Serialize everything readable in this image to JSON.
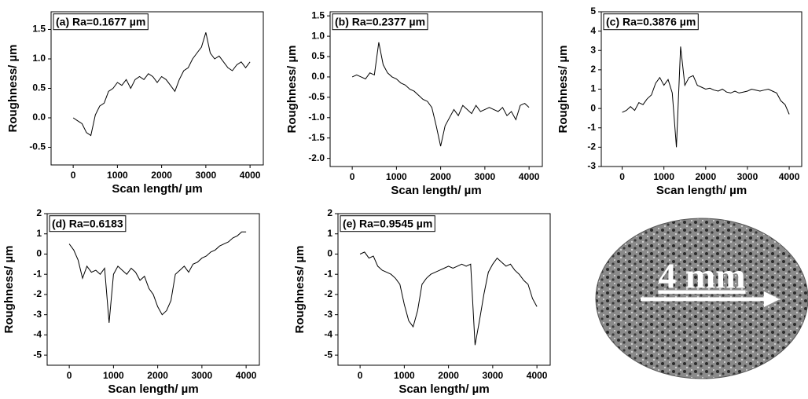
{
  "chart_data": [
    {
      "type": "line",
      "title": "(a) Ra=0.1677 µm",
      "x_label": "Scan length/ µm",
      "y_label": "Roughness/ µm",
      "color": "#000000",
      "x": [
        0,
        100,
        200,
        300,
        400,
        500,
        600,
        700,
        800,
        900,
        1000,
        1100,
        1200,
        1300,
        1400,
        1500,
        1600,
        1700,
        1800,
        1900,
        2000,
        2100,
        2200,
        2300,
        2400,
        2500,
        2600,
        2700,
        2800,
        2900,
        3000,
        3100,
        3200,
        3300,
        3400,
        3500,
        3600,
        3700,
        3800,
        3900,
        4000
      ],
      "values": [
        0.0,
        -0.05,
        -0.1,
        -0.25,
        -0.3,
        0.05,
        0.2,
        0.25,
        0.45,
        0.5,
        0.6,
        0.55,
        0.65,
        0.5,
        0.65,
        0.7,
        0.65,
        0.75,
        0.7,
        0.6,
        0.7,
        0.65,
        0.55,
        0.45,
        0.65,
        0.8,
        0.85,
        1.0,
        1.1,
        1.2,
        1.45,
        1.1,
        1.0,
        1.05,
        0.95,
        0.85,
        0.8,
        0.9,
        0.95,
        0.85,
        0.95
      ],
      "xlim": [
        -500,
        4300
      ],
      "xticks": [
        0,
        1000,
        2000,
        3000,
        4000
      ],
      "ylim": [
        -0.8,
        1.8
      ],
      "yticks": [
        -0.5,
        {
          "value": 0,
          "label": "0.0"
        },
        0.5,
        {
          "value": 1,
          "label": "1.0"
        },
        1.5
      ]
    },
    {
      "type": "line",
      "title": "(b) Ra=0.2377 µm",
      "x_label": "Scan length/ µm",
      "y_label": "Roughness/ µm",
      "color": "#000000",
      "x": [
        0,
        100,
        200,
        300,
        400,
        500,
        600,
        700,
        800,
        900,
        1000,
        1100,
        1200,
        1300,
        1400,
        1500,
        1600,
        1700,
        1800,
        1900,
        2000,
        2100,
        2200,
        2300,
        2400,
        2500,
        2600,
        2700,
        2800,
        2900,
        3000,
        3100,
        3200,
        3300,
        3400,
        3500,
        3600,
        3700,
        3800,
        3900,
        4000
      ],
      "values": [
        0.0,
        0.05,
        0.0,
        -0.05,
        0.1,
        0.05,
        0.85,
        0.3,
        0.1,
        0.0,
        -0.05,
        -0.15,
        -0.2,
        -0.3,
        -0.35,
        -0.45,
        -0.55,
        -0.6,
        -0.75,
        -1.2,
        -1.7,
        -1.2,
        -1.0,
        -0.8,
        -0.95,
        -0.7,
        -0.8,
        -0.9,
        -0.7,
        -0.85,
        -0.8,
        -0.75,
        -0.8,
        -0.85,
        -0.75,
        -0.95,
        -0.85,
        -1.05,
        -0.7,
        -0.65,
        -0.75
      ],
      "xlim": [
        -500,
        4300
      ],
      "xticks": [
        0,
        1000,
        2000,
        3000,
        4000
      ],
      "ylim": [
        -2.2,
        1.6
      ],
      "yticks": [
        1.5,
        {
          "value": 1,
          "label": "1.0"
        },
        0.5,
        {
          "value": 0,
          "label": "0.0"
        },
        -0.5,
        {
          "value": -1,
          "label": "-1.0"
        },
        -1.5,
        {
          "value": -2,
          "label": "-2.0"
        }
      ]
    },
    {
      "type": "line",
      "title": "(c) Ra=0.3876 µm",
      "x_label": "Scan length/ µm",
      "y_label": "Roughness/ µm",
      "color": "#000000",
      "x": [
        0,
        100,
        200,
        300,
        400,
        500,
        600,
        700,
        800,
        900,
        1000,
        1100,
        1200,
        1300,
        1400,
        1500,
        1600,
        1700,
        1800,
        1900,
        2000,
        2100,
        2200,
        2300,
        2400,
        2500,
        2600,
        2700,
        2800,
        2900,
        3000,
        3100,
        3200,
        3300,
        3400,
        3500,
        3600,
        3700,
        3800,
        3900,
        4000
      ],
      "values": [
        -0.2,
        -0.1,
        0.1,
        -0.1,
        0.3,
        0.2,
        0.5,
        0.7,
        1.3,
        1.6,
        1.2,
        1.5,
        0.8,
        -2.0,
        3.2,
        1.2,
        1.6,
        1.7,
        1.2,
        1.1,
        1.0,
        1.05,
        0.95,
        0.9,
        1.0,
        0.85,
        0.8,
        0.9,
        0.8,
        0.85,
        0.9,
        1.0,
        0.95,
        0.9,
        0.95,
        1.0,
        0.9,
        0.8,
        0.4,
        0.2,
        -0.3
      ],
      "xlim": [
        -500,
        4300
      ],
      "xticks": [
        0,
        1000,
        2000,
        3000,
        4000
      ],
      "ylim": [
        -3,
        5
      ],
      "yticks": [
        -3,
        -2,
        -1,
        0,
        1,
        2,
        3,
        4,
        5
      ]
    },
    {
      "type": "line",
      "title": "(d) Ra=0.6183",
      "x_label": "Scan length/ µm",
      "y_label": "Roughness/ µm",
      "color": "#000000",
      "x": [
        0,
        100,
        200,
        300,
        400,
        500,
        600,
        700,
        800,
        900,
        1000,
        1100,
        1200,
        1300,
        1400,
        1500,
        1600,
        1700,
        1800,
        1900,
        2000,
        2100,
        2200,
        2300,
        2400,
        2500,
        2600,
        2700,
        2800,
        2900,
        3000,
        3100,
        3200,
        3300,
        3400,
        3500,
        3600,
        3700,
        3800,
        3900,
        4000
      ],
      "values": [
        0.5,
        0.2,
        -0.3,
        -1.2,
        -0.6,
        -0.9,
        -0.8,
        -1.0,
        -0.7,
        -3.4,
        -1.0,
        -0.6,
        -0.8,
        -1.0,
        -0.7,
        -0.9,
        -1.3,
        -1.1,
        -1.7,
        -2.0,
        -2.6,
        -3.0,
        -2.8,
        -2.3,
        -1.0,
        -0.8,
        -0.6,
        -0.9,
        -0.5,
        -0.4,
        -0.2,
        -0.1,
        0.1,
        0.2,
        0.4,
        0.5,
        0.6,
        0.8,
        0.9,
        1.1,
        1.1
      ],
      "xlim": [
        -500,
        4300
      ],
      "xticks": [
        0,
        1000,
        2000,
        3000,
        4000
      ],
      "ylim": [
        -5.5,
        2
      ],
      "yticks": [
        -5,
        -4,
        -3,
        -2,
        -1,
        0,
        1,
        2
      ]
    },
    {
      "type": "line",
      "title": "(e) Ra=0.9545 µm",
      "x_label": "Scan length/ µm",
      "y_label": "Roughness/ µm",
      "color": "#000000",
      "x": [
        0,
        100,
        200,
        300,
        400,
        500,
        600,
        700,
        800,
        900,
        1000,
        1100,
        1200,
        1300,
        1400,
        1500,
        1600,
        1700,
        1800,
        1900,
        2000,
        2100,
        2200,
        2300,
        2400,
        2500,
        2600,
        2700,
        2800,
        2900,
        3000,
        3100,
        3200,
        3300,
        3400,
        3500,
        3600,
        3700,
        3800,
        3900,
        4000
      ],
      "values": [
        0.0,
        0.1,
        -0.2,
        -0.1,
        -0.6,
        -0.8,
        -0.9,
        -1.0,
        -1.2,
        -1.5,
        -2.5,
        -3.3,
        -3.6,
        -2.8,
        -1.5,
        -1.2,
        -1.0,
        -0.9,
        -0.8,
        -0.7,
        -0.6,
        -0.7,
        -0.6,
        -0.5,
        -0.6,
        -0.5,
        -4.5,
        -3.3,
        -2.0,
        -0.9,
        -0.5,
        -0.2,
        -0.4,
        -0.6,
        -0.5,
        -0.8,
        -1.0,
        -1.3,
        -1.5,
        -2.2,
        -2.6
      ],
      "xlim": [
        -500,
        4300
      ],
      "xticks": [
        0,
        1000,
        2000,
        3000,
        4000
      ],
      "ylim": [
        -5.5,
        2
      ],
      "yticks": [
        -5,
        -4,
        -3,
        -2,
        -1,
        0,
        1,
        2
      ]
    }
  ],
  "image": {
    "label": "4 mm"
  }
}
